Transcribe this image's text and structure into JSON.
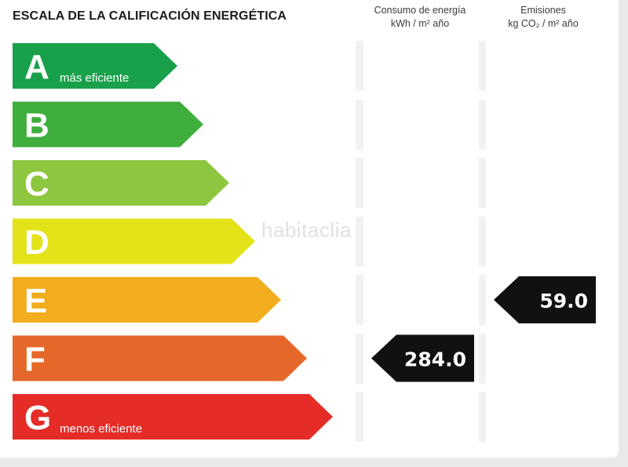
{
  "title": "ESCALA DE LA CALIFICACIÓN ENERGÉTICA",
  "column_headers": {
    "consumption": {
      "line1": "Consumo de energía",
      "line2": "kWh / m² año"
    },
    "emissions": {
      "line1": "Emisiones",
      "line2": "kg CO₂ / m² año"
    }
  },
  "watermark": "habitaclia",
  "chart_data": {
    "type": "table",
    "title": "ESCALA DE LA CALIFICACIÓN ENERGÉTICA",
    "columns": [
      "Consumo de energía kWh / m² año",
      "Emisiones kg CO₂ / m² año"
    ],
    "ratings": [
      {
        "letter": "A",
        "note": "más eficiente",
        "color": "#18a14a"
      },
      {
        "letter": "B",
        "note": "",
        "color": "#3fae3c"
      },
      {
        "letter": "C",
        "note": "",
        "color": "#8dc63f"
      },
      {
        "letter": "D",
        "note": "",
        "color": "#e4e31a"
      },
      {
        "letter": "E",
        "note": "",
        "color": "#f1ad1d"
      },
      {
        "letter": "F",
        "note": "",
        "color": "#e5682a"
      },
      {
        "letter": "G",
        "note": "menos eficiente",
        "color": "#e52c27"
      }
    ],
    "consumption": {
      "rating": "F",
      "value": "284.0"
    },
    "emissions": {
      "rating": "E",
      "value": "59.0"
    },
    "indicator_color": "#111111"
  }
}
